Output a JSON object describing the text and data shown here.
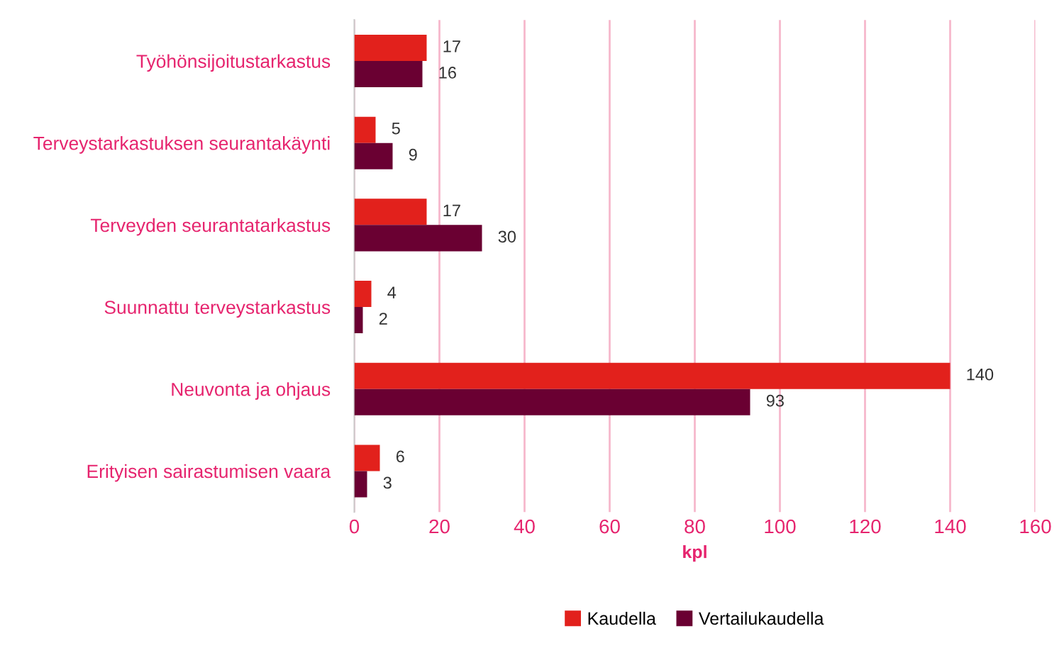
{
  "chart_data": {
    "type": "bar",
    "orientation": "horizontal",
    "xlabel": "kpl",
    "categories": [
      "Työhönsijoitustarkastus",
      "Terveystarkastuksen seurantakäynti",
      "Terveyden seurantatarkastus",
      "Suunnattu terveystarkastus",
      "Neuvonta ja ohjaus",
      "Erityisen sairastumisen vaara"
    ],
    "series": [
      {
        "name": "Kaudella",
        "color": "#e2211c",
        "values": [
          17,
          5,
          17,
          4,
          140,
          6
        ]
      },
      {
        "name": "Vertailukaudella",
        "color": "#6a0032",
        "values": [
          16,
          9,
          30,
          2,
          93,
          3
        ]
      }
    ],
    "xlim": [
      0,
      160
    ],
    "xticks": [
      0,
      20,
      40,
      60,
      80,
      100,
      120,
      140,
      160
    ],
    "grid": "x",
    "legend": "bottom",
    "data_labels": true
  }
}
